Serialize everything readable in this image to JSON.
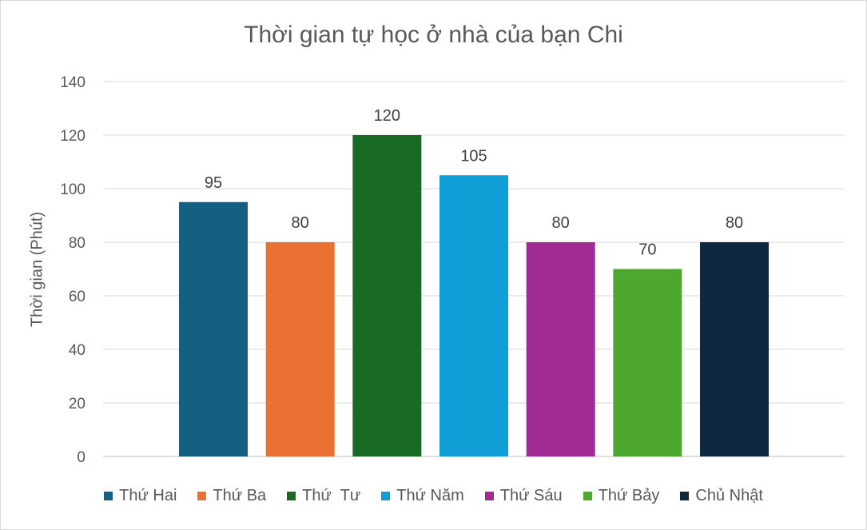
{
  "chart_data": {
    "type": "bar",
    "title": "Thời gian tự học ở nhà của bạn Chi",
    "xlabel": "",
    "ylabel": "Thời gian (Phút)",
    "ylim": [
      0,
      140
    ],
    "yticks": [
      0,
      20,
      40,
      60,
      80,
      100,
      120,
      140
    ],
    "grid": true,
    "legend_position": "bottom",
    "data_labels": true,
    "series": [
      {
        "name": "Thứ Hai",
        "values": [
          95
        ],
        "color": "#156082"
      },
      {
        "name": "Thứ Ba",
        "values": [
          80
        ],
        "color": "#E97132"
      },
      {
        "name": "Thứ  Tư",
        "values": [
          120
        ],
        "color": "#196B24"
      },
      {
        "name": "Thứ Năm",
        "values": [
          105
        ],
        "color": "#0F9ED5"
      },
      {
        "name": "Thứ Sáu",
        "values": [
          80
        ],
        "color": "#A02B93"
      },
      {
        "name": "Thứ Bảy",
        "values": [
          70
        ],
        "color": "#4EA72E"
      },
      {
        "name": "Chủ Nhật",
        "values": [
          80
        ],
        "color": "#0E2841"
      }
    ]
  }
}
